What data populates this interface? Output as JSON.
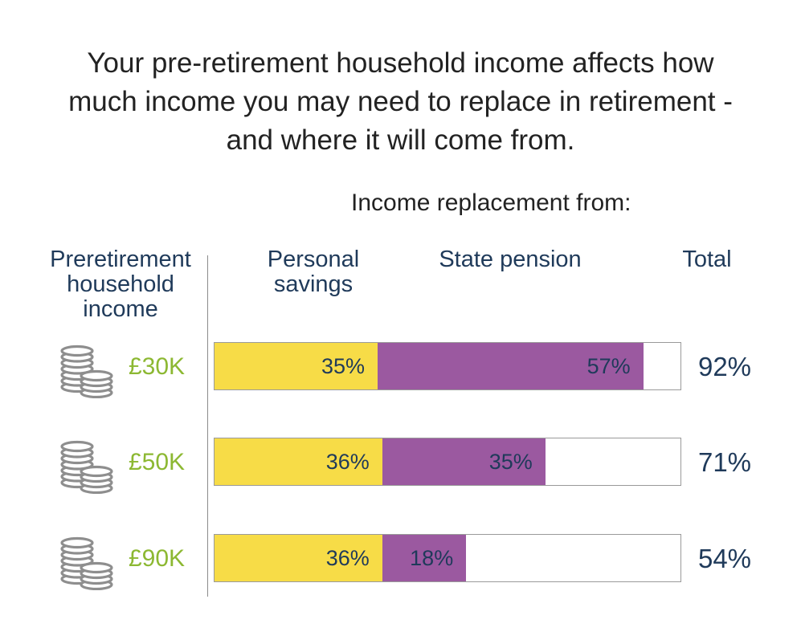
{
  "headline": {
    "line1": "Your pre-retirement household income affects how",
    "line2": "much income you may need to replace in retirement -",
    "line3": "and where it will come from."
  },
  "subhead": "Income replacement from:",
  "column_headers": {
    "preretirement": [
      "Preretirement",
      "household",
      "income"
    ],
    "personal": [
      "Personal",
      "savings"
    ],
    "state": [
      "State pension"
    ],
    "total": [
      "Total"
    ]
  },
  "colors": {
    "personal_savings": "#f7dc47",
    "state_pension": "#9b59a0",
    "income_label": "#8cb832",
    "text_dark": "#1f3a5a",
    "coin_stroke": "#8e8e8e"
  },
  "icons": {
    "row_icon": "coin-stack-icon"
  },
  "chart_data": {
    "type": "bar",
    "orientation": "horizontal",
    "stacked": true,
    "categories": [
      "£30K",
      "£50K",
      "£90K"
    ],
    "series": [
      {
        "name": "Personal savings",
        "values": [
          35,
          36,
          36
        ],
        "labels": [
          "35%",
          "36%",
          "36%"
        ]
      },
      {
        "name": "State pension",
        "values": [
          57,
          35,
          18
        ],
        "labels": [
          "57%",
          "35%",
          "18%"
        ]
      }
    ],
    "totals": [
      92,
      71,
      54
    ],
    "total_labels": [
      "92%",
      "71%",
      "54%"
    ],
    "xlim": [
      0,
      100
    ],
    "unit": "%"
  }
}
